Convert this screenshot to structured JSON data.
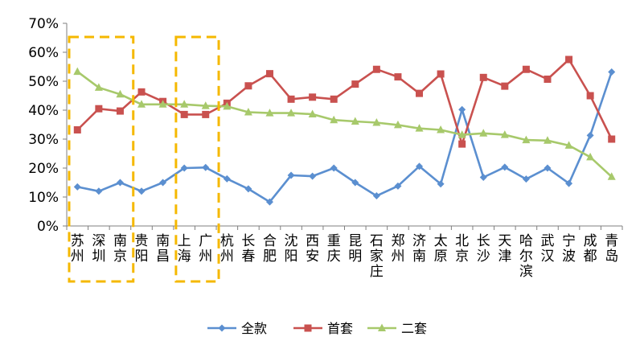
{
  "chart_data": {
    "type": "line",
    "categories": [
      "苏州",
      "深圳",
      "南京",
      "贵阳",
      "南昌",
      "上海",
      "广州",
      "杭州",
      "长春",
      "合肥",
      "沈阳",
      "西安",
      "重庆",
      "昆明",
      "石家庄",
      "郑州",
      "济南",
      "太原",
      "北京",
      "长沙",
      "天津",
      "哈尔滨",
      "武汉",
      "宁波",
      "成都",
      "青岛"
    ],
    "series": [
      {
        "name": "全款",
        "color": "#5b8fd0",
        "marker": "diamond",
        "values": [
          13.5,
          12,
          15,
          12,
          15,
          20,
          20.2,
          16.3,
          12.8,
          8.3,
          17.5,
          17.2,
          20,
          15,
          10.4,
          13.8,
          20.6,
          14.5,
          40.2,
          16.8,
          20.3,
          16.2,
          20,
          14.7,
          31.3,
          53.2
        ]
      },
      {
        "name": "首套",
        "color": "#c9514f",
        "marker": "square",
        "values": [
          33.2,
          40.5,
          39.7,
          46.3,
          43,
          38.5,
          38.5,
          42.4,
          48.4,
          52.6,
          43.8,
          44.5,
          43.8,
          49,
          54.1,
          51.5,
          45.8,
          52.5,
          28.3,
          51.3,
          48.3,
          54.1,
          50.7,
          57.5,
          45,
          30
        ]
      },
      {
        "name": "二套",
        "color": "#a7c96b",
        "marker": "triangle",
        "values": [
          53.3,
          47.8,
          45.5,
          42,
          42,
          42,
          41.5,
          41.3,
          39.3,
          39,
          39,
          38.6,
          36.6,
          36.1,
          35.7,
          34.9,
          33.7,
          33.2,
          31.5,
          32,
          31.5,
          29.7,
          29.5,
          27.8,
          23.8,
          17
        ]
      }
    ],
    "ylim": [
      0,
      70
    ],
    "yticks": [
      "0%",
      "10%",
      "20%",
      "30%",
      "40%",
      "50%",
      "60%",
      "70%"
    ],
    "legend_position": "bottom",
    "highlight_boxes": [
      {
        "from_category": "苏州",
        "to_category": "南京",
        "color": "#f5b800",
        "style": "dashed"
      },
      {
        "from_category": "上海",
        "to_category": "广州",
        "color": "#f5b800",
        "style": "dashed"
      }
    ],
    "grid": false
  }
}
